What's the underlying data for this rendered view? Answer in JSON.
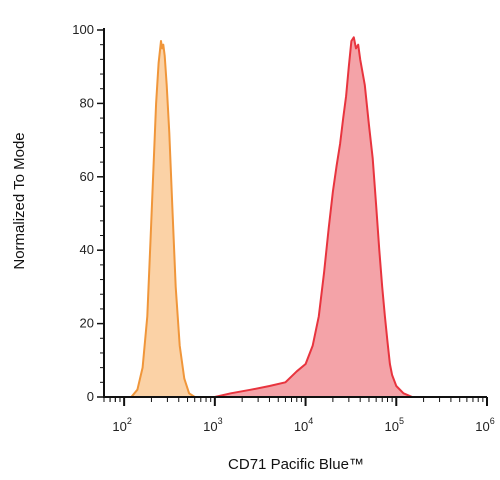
{
  "chart_data": {
    "type": "area",
    "title": "",
    "xlabel": "CD71 Pacific Blue™",
    "ylabel": "Normalized To Mode",
    "x_scale": "log",
    "xlim": [
      60,
      1000000
    ],
    "ylim": [
      0,
      100
    ],
    "x_ticks": [
      {
        "value": 100,
        "base": "10",
        "exp": "2"
      },
      {
        "value": 1000,
        "base": "10",
        "exp": "3"
      },
      {
        "value": 10000,
        "base": "10",
        "exp": "4"
      },
      {
        "value": 100000,
        "base": "10",
        "exp": "5"
      },
      {
        "value": 1000000,
        "base": "10",
        "exp": "6"
      }
    ],
    "y_ticks": [
      "0",
      "20",
      "40",
      "60",
      "80",
      "100"
    ],
    "grid": false,
    "legend": "none",
    "series": [
      {
        "color": "#f0963a",
        "fill": "#fbd2a6",
        "points": [
          [
            120,
            0
          ],
          [
            140,
            2
          ],
          [
            160,
            8
          ],
          [
            180,
            22
          ],
          [
            195,
            42
          ],
          [
            210,
            62
          ],
          [
            225,
            80
          ],
          [
            240,
            91
          ],
          [
            255,
            97
          ],
          [
            262,
            95
          ],
          [
            270,
            96
          ],
          [
            280,
            93
          ],
          [
            295,
            85
          ],
          [
            315,
            72
          ],
          [
            340,
            52
          ],
          [
            370,
            30
          ],
          [
            410,
            14
          ],
          [
            460,
            5
          ],
          [
            520,
            1
          ],
          [
            600,
            0
          ]
        ]
      },
      {
        "color": "#e8343e",
        "fill": "#f4a3a8",
        "points": [
          [
            1000,
            0
          ],
          [
            1500,
            1
          ],
          [
            2500,
            2
          ],
          [
            4000,
            3
          ],
          [
            6000,
            4
          ],
          [
            8000,
            7
          ],
          [
            10000,
            9
          ],
          [
            12000,
            14
          ],
          [
            14000,
            22
          ],
          [
            16000,
            34
          ],
          [
            18000,
            46
          ],
          [
            20000,
            56
          ],
          [
            22000,
            63
          ],
          [
            24000,
            69
          ],
          [
            26000,
            76
          ],
          [
            28000,
            82
          ],
          [
            30000,
            90
          ],
          [
            32000,
            97
          ],
          [
            34000,
            98
          ],
          [
            36000,
            95
          ],
          [
            38000,
            96
          ],
          [
            40000,
            92
          ],
          [
            45000,
            85
          ],
          [
            50000,
            74
          ],
          [
            55000,
            65
          ],
          [
            60000,
            52
          ],
          [
            65000,
            40
          ],
          [
            70000,
            30
          ],
          [
            75000,
            22
          ],
          [
            80000,
            15
          ],
          [
            85000,
            9
          ],
          [
            90000,
            6
          ],
          [
            100000,
            3
          ],
          [
            120000,
            1
          ],
          [
            150000,
            0
          ]
        ]
      }
    ]
  }
}
